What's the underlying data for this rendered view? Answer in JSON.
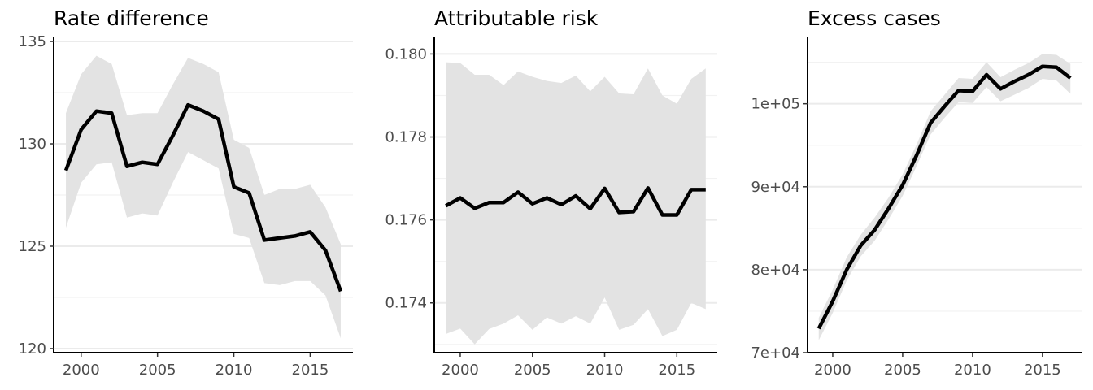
{
  "chart_data": [
    {
      "type": "line",
      "title": "Rate difference",
      "xlabel": "",
      "ylabel": "",
      "xlim": [
        1998.2,
        2017.8
      ],
      "ylim": [
        119.8,
        135.2
      ],
      "x_ticks": [
        2000,
        2005,
        2010,
        2015
      ],
      "x_tick_labels": [
        "2000",
        "2005",
        "2010",
        "2015"
      ],
      "y_ticks": [
        120,
        125,
        130,
        135
      ],
      "y_tick_labels": [
        "120",
        "125",
        "130",
        "135"
      ],
      "y_minor_ticks": [
        122.5,
        127.5,
        132.5
      ],
      "grid": true,
      "legend": "none",
      "x": [
        1999,
        2000,
        2001,
        2002,
        2003,
        2004,
        2005,
        2006,
        2007,
        2008,
        2009,
        2010,
        2011,
        2012,
        2013,
        2014,
        2015,
        2016,
        2017
      ],
      "values": [
        128.7,
        130.7,
        131.6,
        131.5,
        128.9,
        129.1,
        129.0,
        130.4,
        131.9,
        131.6,
        131.2,
        127.9,
        127.6,
        125.3,
        125.4,
        125.5,
        125.7,
        124.8,
        122.8
      ],
      "lower": [
        125.9,
        128.1,
        129.0,
        129.1,
        126.4,
        126.6,
        126.5,
        128.1,
        129.6,
        129.2,
        128.8,
        125.6,
        125.4,
        123.2,
        123.1,
        123.3,
        123.3,
        122.6,
        120.5
      ],
      "upper": [
        131.5,
        133.4,
        134.3,
        133.9,
        131.4,
        131.5,
        131.5,
        132.9,
        134.2,
        133.9,
        133.5,
        130.2,
        129.8,
        127.5,
        127.8,
        127.8,
        128.0,
        126.9,
        125.1
      ]
    },
    {
      "type": "line",
      "title": "Attributable risk",
      "xlabel": "",
      "ylabel": "",
      "xlim": [
        1998.2,
        2017.8
      ],
      "ylim": [
        0.1728,
        0.1804
      ],
      "x_ticks": [
        2000,
        2005,
        2010,
        2015
      ],
      "x_tick_labels": [
        "2000",
        "2005",
        "2010",
        "2015"
      ],
      "y_ticks": [
        0.174,
        0.176,
        0.178,
        0.18
      ],
      "y_tick_labels": [
        "0.174",
        "0.176",
        "0.178",
        "0.180"
      ],
      "y_minor_ticks": [
        0.173,
        0.175,
        0.177,
        0.179
      ],
      "grid": true,
      "legend": "none",
      "x": [
        1999,
        2000,
        2001,
        2002,
        2003,
        2004,
        2005,
        2006,
        2007,
        2008,
        2009,
        2010,
        2011,
        2012,
        2013,
        2014,
        2015,
        2016,
        2017
      ],
      "values": [
        0.17634,
        0.17653,
        0.17628,
        0.17642,
        0.17642,
        0.17667,
        0.17639,
        0.17653,
        0.17637,
        0.17658,
        0.17627,
        0.17676,
        0.17618,
        0.1762,
        0.17677,
        0.17612,
        0.17612,
        0.17673,
        0.17673
      ],
      "lower": [
        0.17325,
        0.17338,
        0.173,
        0.17337,
        0.1735,
        0.1737,
        0.17335,
        0.17365,
        0.1735,
        0.17368,
        0.1735,
        0.17413,
        0.17335,
        0.17347,
        0.17385,
        0.1732,
        0.17335,
        0.174,
        0.17385
      ],
      "upper": [
        0.1798,
        0.17978,
        0.1795,
        0.1795,
        0.17925,
        0.17958,
        0.17945,
        0.17935,
        0.1793,
        0.17948,
        0.1791,
        0.17945,
        0.17905,
        0.17903,
        0.17965,
        0.179,
        0.1788,
        0.1794,
        0.17965
      ]
    },
    {
      "type": "line",
      "title": "Excess cases",
      "xlabel": "",
      "ylabel": "",
      "xlim": [
        1998.2,
        2017.8
      ],
      "ylim": [
        70000,
        108000
      ],
      "x_ticks": [
        2000,
        2005,
        2010,
        2015
      ],
      "x_tick_labels": [
        "2000",
        "2005",
        "2010",
        "2015"
      ],
      "y_ticks": [
        70000,
        80000,
        90000,
        100000
      ],
      "y_tick_labels": [
        "7e+04",
        "8e+04",
        "9e+04",
        "1e+05"
      ],
      "y_minor_ticks": [
        75000,
        85000,
        95000,
        105000
      ],
      "grid": true,
      "legend": "none",
      "x": [
        1999,
        2000,
        2001,
        2002,
        2003,
        2004,
        2005,
        2006,
        2007,
        2008,
        2009,
        2010,
        2011,
        2012,
        2013,
        2014,
        2015,
        2016,
        2017
      ],
      "values": [
        72900,
        76200,
        80000,
        82900,
        84800,
        87400,
        90200,
        93800,
        97700,
        99700,
        101600,
        101500,
        103500,
        101800,
        102700,
        103500,
        104500,
        104400,
        103100
      ],
      "lower": [
        71500,
        74800,
        78700,
        81600,
        83500,
        86100,
        88900,
        92500,
        96300,
        98300,
        100200,
        100100,
        102000,
        100300,
        101100,
        101900,
        103000,
        102800,
        101200
      ],
      "upper": [
        74200,
        77600,
        81500,
        84200,
        86300,
        88700,
        91500,
        95100,
        99100,
        101100,
        103100,
        103000,
        105000,
        103200,
        104100,
        104900,
        106000,
        105900,
        104800
      ]
    }
  ]
}
